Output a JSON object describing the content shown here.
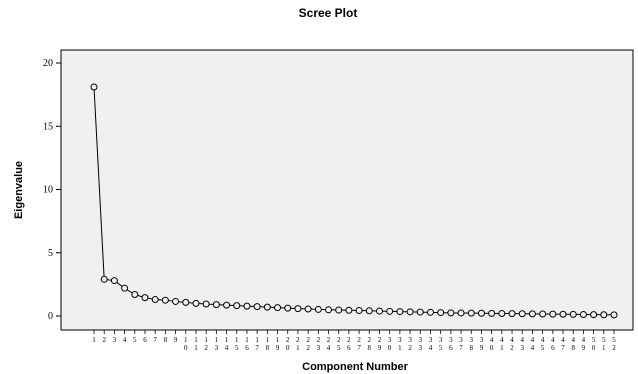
{
  "chart_data": {
    "type": "line",
    "title": "Scree Plot",
    "xlabel": "Component Number",
    "ylabel": "Eigenvalue",
    "ylim": [
      0,
      21
    ],
    "yticks": [
      0,
      5,
      10,
      15,
      20
    ],
    "grid": false,
    "x": [
      1,
      2,
      3,
      4,
      5,
      6,
      7,
      8,
      9,
      10,
      11,
      12,
      13,
      14,
      15,
      16,
      17,
      18,
      19,
      20,
      21,
      22,
      23,
      24,
      25,
      26,
      27,
      28,
      29,
      30,
      31,
      32,
      33,
      34,
      35,
      36,
      37,
      38,
      39,
      40,
      41,
      42,
      43,
      44,
      45,
      46,
      47,
      48,
      49,
      50,
      51,
      52
    ],
    "series": [
      {
        "values": [
          18.1,
          2.9,
          2.8,
          2.2,
          1.7,
          1.45,
          1.3,
          1.25,
          1.15,
          1.08,
          1.0,
          0.95,
          0.9,
          0.86,
          0.82,
          0.78,
          0.74,
          0.7,
          0.66,
          0.62,
          0.58,
          0.55,
          0.52,
          0.49,
          0.47,
          0.45,
          0.43,
          0.41,
          0.39,
          0.37,
          0.35,
          0.33,
          0.31,
          0.29,
          0.27,
          0.25,
          0.24,
          0.23,
          0.22,
          0.21,
          0.2,
          0.19,
          0.18,
          0.17,
          0.16,
          0.15,
          0.14,
          0.13,
          0.12,
          0.11,
          0.1,
          0.09
        ]
      }
    ]
  }
}
